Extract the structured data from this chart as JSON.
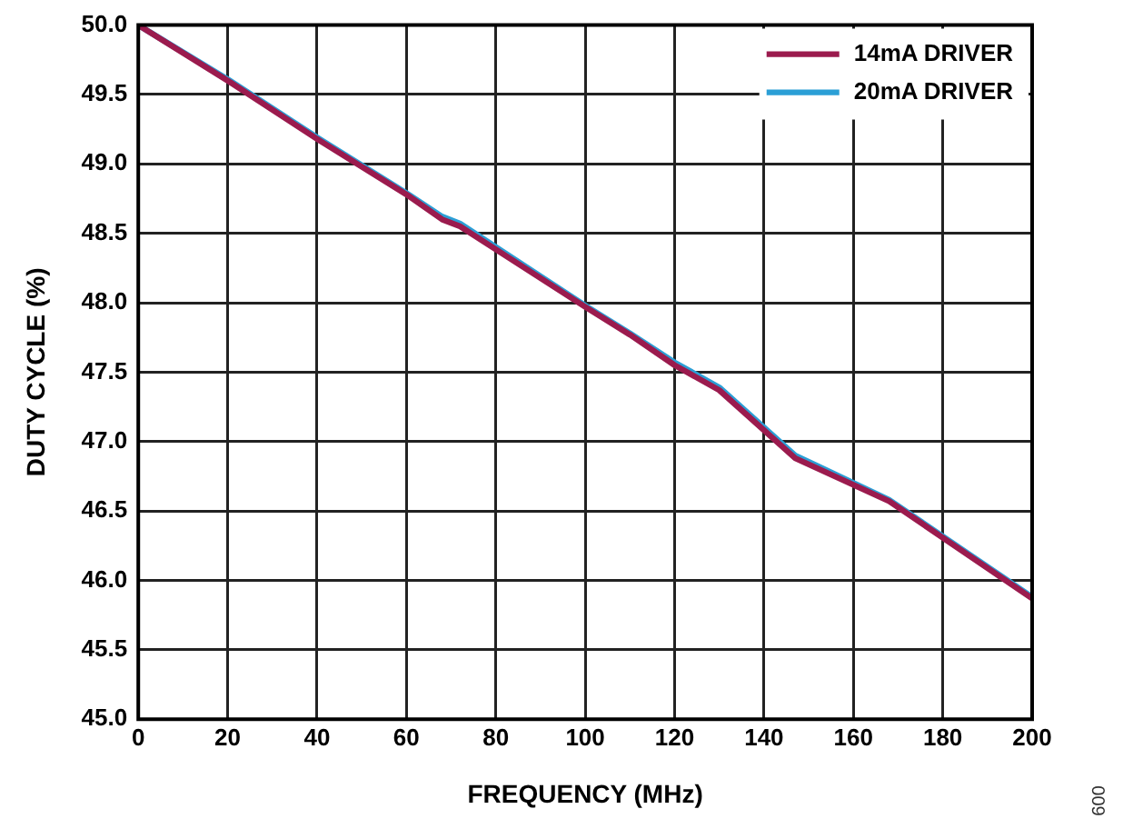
{
  "chart_data": {
    "type": "line",
    "xlabel": "FREQUENCY (MHz)",
    "ylabel": "DUTY CYCLE (%)",
    "series": [
      {
        "name": "14mA DRIVER",
        "color": "#9b1b4e",
        "x": [
          0,
          20,
          40,
          60,
          68,
          72,
          100,
          110,
          120,
          130,
          147,
          168,
          200
        ],
        "values": [
          50.0,
          49.6,
          49.18,
          48.78,
          48.6,
          48.55,
          47.97,
          47.77,
          47.55,
          47.37,
          46.88,
          46.57,
          45.87
        ]
      },
      {
        "name": "20mA DRIVER",
        "color": "#2b9fd6",
        "x": [
          0,
          20,
          40,
          60,
          68,
          72,
          100,
          110,
          120,
          130,
          147,
          168,
          200
        ],
        "values": [
          50.0,
          49.61,
          49.19,
          48.79,
          48.62,
          48.57,
          47.98,
          47.78,
          47.57,
          47.39,
          46.9,
          46.58,
          45.88
        ]
      }
    ],
    "xlim": [
      0,
      200
    ],
    "xticks": [
      0,
      20,
      40,
      60,
      80,
      100,
      120,
      140,
      160,
      180,
      200
    ],
    "ylim": [
      45,
      50
    ],
    "yticks": [
      {
        "value": 45,
        "label": "45.0"
      },
      {
        "value": 45.5,
        "label": "45.5"
      },
      {
        "value": 46,
        "label": "46.0"
      },
      {
        "value": 46.5,
        "label": "46.5"
      },
      {
        "value": 47,
        "label": "47.0"
      },
      {
        "value": 47.5,
        "label": "47.5"
      },
      {
        "value": 48,
        "label": "48.0"
      },
      {
        "value": 48.5,
        "label": "48.5"
      },
      {
        "value": 49,
        "label": "49.0"
      },
      {
        "value": 49.5,
        "label": "49.5"
      },
      {
        "value": 50,
        "label": "50.0"
      }
    ],
    "grid": true,
    "legend": "top right",
    "marker": "none",
    "line_style": "solid",
    "annotations": [
      "009"
    ]
  }
}
